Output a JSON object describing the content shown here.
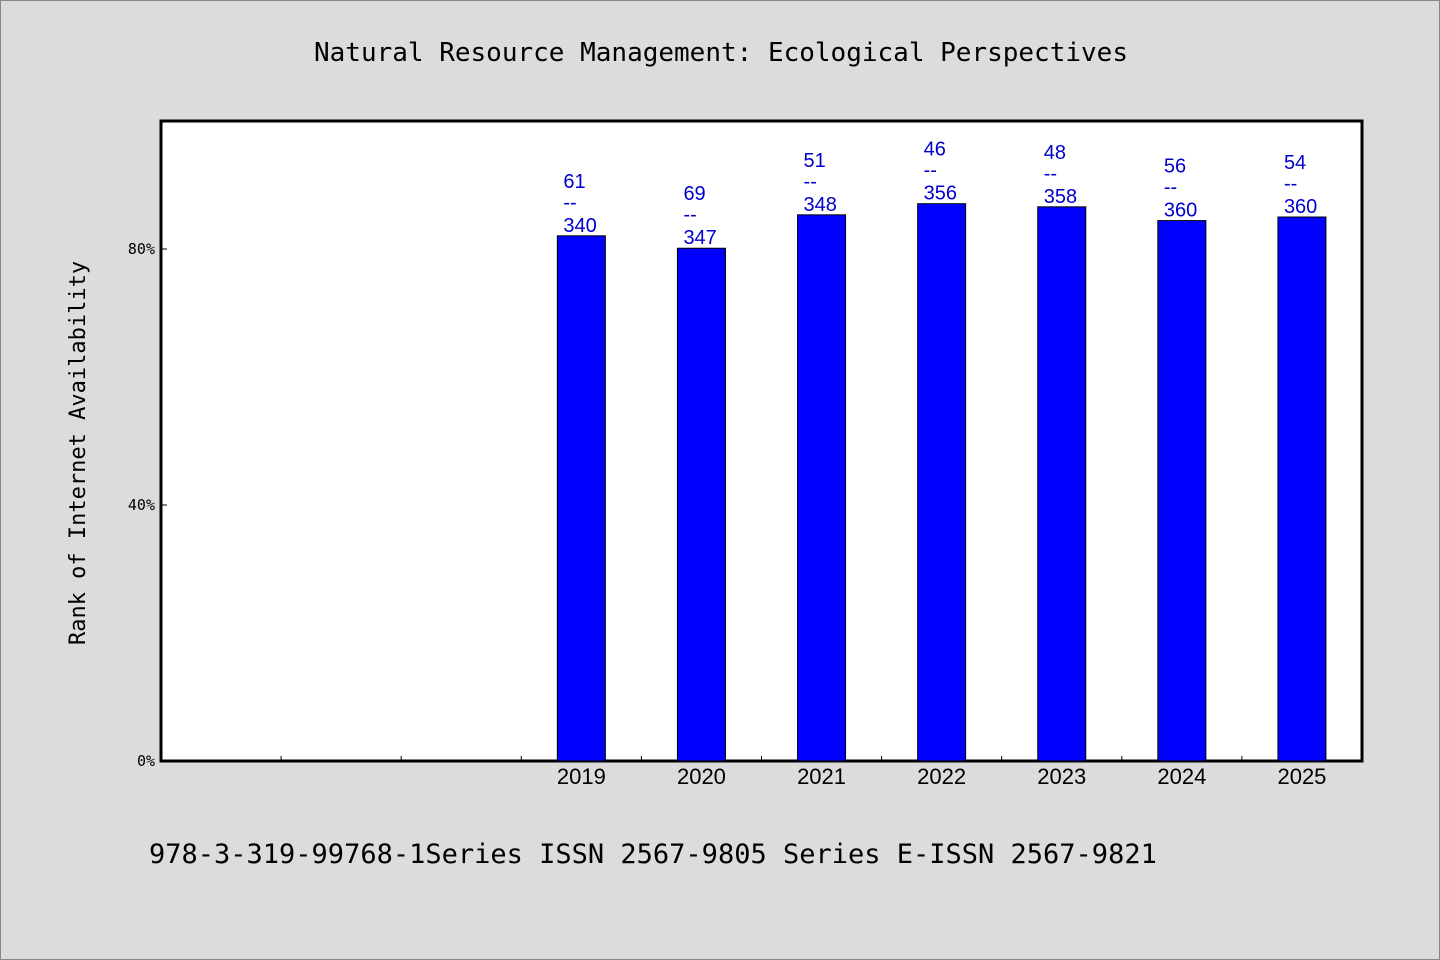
{
  "chart_data": {
    "type": "bar",
    "title": "Natural Resource Management: Ecological Perspectives",
    "ylabel": "Rank of Internet Availability",
    "xlabel": "",
    "categories": [
      "",
      "",
      "",
      "2019",
      "2020",
      "2021",
      "2022",
      "2023",
      "2024",
      "2025"
    ],
    "values": [
      null,
      null,
      null,
      82.06,
      80.12,
      85.34,
      87.08,
      86.59,
      84.44,
      85.0
    ],
    "data_labels": [
      null,
      null,
      null,
      {
        "top": "61",
        "mid": "--",
        "bottom": "340"
      },
      {
        "top": "69",
        "mid": "--",
        "bottom": "347"
      },
      {
        "top": "51",
        "mid": "--",
        "bottom": "348"
      },
      {
        "top": "46",
        "mid": "--",
        "bottom": "356"
      },
      {
        "top": "48",
        "mid": "--",
        "bottom": "358"
      },
      {
        "top": "56",
        "mid": "--",
        "bottom": "360"
      },
      {
        "top": "54",
        "mid": "--",
        "bottom": "360"
      }
    ],
    "ylim": [
      0,
      100
    ],
    "yticks": [
      {
        "value": 0,
        "label": "0%"
      },
      {
        "value": 40,
        "label": "40%"
      },
      {
        "value": 80,
        "label": "80%"
      }
    ],
    "grid": false,
    "bar_color": "#0000ff",
    "label_color": "#0000cc"
  },
  "footer": "978-3-319-99768-1Series ISSN 2567-9805 Series E-ISSN 2567-9821"
}
